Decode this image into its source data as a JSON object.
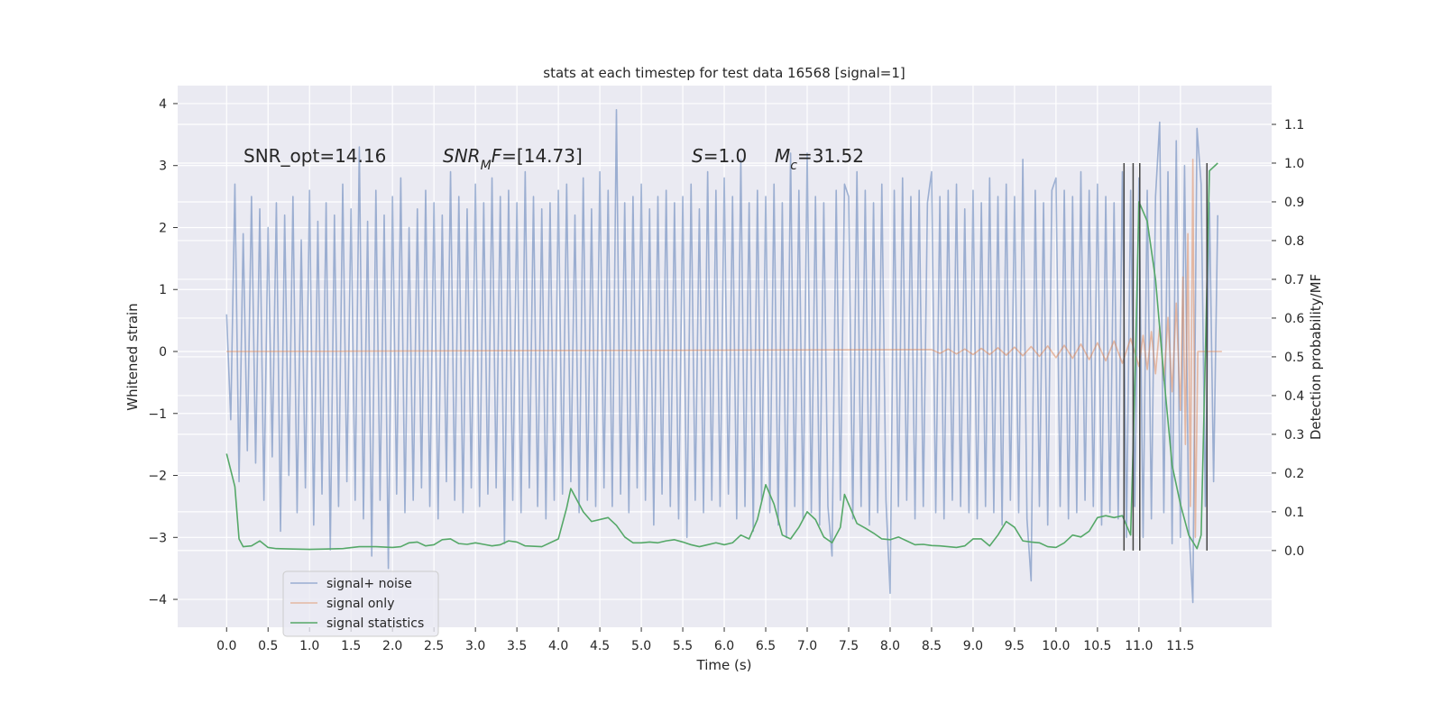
{
  "chart_data": {
    "type": "line",
    "title": "stats at each timestep for test data 16568 [signal=1]",
    "x_label": "Time (s)",
    "y_label": "Whitened strain",
    "y2_label": "Detection probability/MF",
    "xlim": [
      -0.59,
      12.6
    ],
    "ylim": [
      -4.45,
      4.29
    ],
    "y2lim": [
      -0.198,
      1.2
    ],
    "xticks": [
      {
        "value": 0,
        "label": "0.0"
      },
      0.5,
      {
        "value": 1,
        "label": "1.0"
      },
      1.5,
      {
        "value": 2,
        "label": "2.0"
      },
      2.5,
      {
        "value": 3,
        "label": "3.0"
      },
      3.5,
      {
        "value": 4,
        "label": "4.0"
      },
      4.5,
      {
        "value": 5,
        "label": "5.0"
      },
      5.5,
      {
        "value": 6,
        "label": "6.0"
      },
      6.5,
      {
        "value": 7,
        "label": "7.0"
      },
      7.5,
      {
        "value": 8,
        "label": "8.0"
      },
      8.5,
      {
        "value": 9,
        "label": "9.0"
      },
      9.5,
      {
        "value": 10,
        "label": "10.0"
      },
      10.5,
      {
        "value": 11,
        "label": "11.0"
      },
      11.5
    ],
    "yticks": [
      {
        "value": -4,
        "label": "−4"
      },
      {
        "value": -3,
        "label": "−3"
      },
      {
        "value": -2,
        "label": "−2"
      },
      {
        "value": -1,
        "label": "−1"
      },
      0,
      1,
      2,
      3,
      4
    ],
    "y2ticks": [
      {
        "value": 0,
        "label": "0.0"
      },
      0.1,
      0.2,
      0.3,
      0.4,
      0.5,
      0.6,
      0.7,
      0.8,
      0.9,
      {
        "value": 1,
        "label": "1.0"
      },
      1.1
    ],
    "grid": true,
    "legend": "lower left",
    "annotations": [
      {
        "parts": [
          {
            "text": "SNR_opt=14.16"
          }
        ]
      },
      {
        "parts": [
          {
            "text": "SNR",
            "italic": true
          },
          {
            "text": "M",
            "italic": true,
            "sub": true
          },
          {
            "text": "F",
            "italic": true
          },
          {
            "text": "=[14.73]"
          }
        ]
      },
      {
        "parts": [
          {
            "text": "S",
            "italic": true
          },
          {
            "text": "=1.0"
          }
        ]
      },
      {
        "parts": [
          {
            "text": "M",
            "italic": true
          },
          {
            "text": "c",
            "italic": true,
            "sub": true
          },
          {
            "text": "=31.52"
          }
        ]
      }
    ],
    "vlines": {
      "x": [
        10.82,
        10.93,
        11.01,
        11.82
      ],
      "range": [
        0,
        1
      ],
      "color": "#444444"
    },
    "series": [
      {
        "name": "signal+ noise",
        "color": "#4c72b0",
        "alpha": 0.5,
        "axis": "y",
        "x": [
          0,
          0.05,
          0.1,
          0.15,
          0.2,
          0.25,
          0.3,
          0.35,
          0.4,
          0.45,
          0.5,
          0.55,
          0.6,
          0.65,
          0.7,
          0.75,
          0.8,
          0.85,
          0.9,
          0.95,
          1,
          1.05,
          1.1,
          1.15,
          1.2,
          1.25,
          1.3,
          1.35,
          1.4,
          1.45,
          1.5,
          1.55,
          1.6,
          1.65,
          1.7,
          1.75,
          1.8,
          1.85,
          1.9,
          1.95,
          2,
          2.05,
          2.1,
          2.15,
          2.2,
          2.25,
          2.3,
          2.35,
          2.4,
          2.45,
          2.5,
          2.55,
          2.6,
          2.65,
          2.7,
          2.75,
          2.8,
          2.85,
          2.9,
          2.95,
          3,
          3.05,
          3.1,
          3.15,
          3.2,
          3.25,
          3.3,
          3.35,
          3.4,
          3.45,
          3.5,
          3.55,
          3.6,
          3.65,
          3.7,
          3.75,
          3.8,
          3.85,
          3.9,
          3.95,
          4,
          4.05,
          4.1,
          4.15,
          4.2,
          4.25,
          4.3,
          4.35,
          4.4,
          4.45,
          4.5,
          4.55,
          4.6,
          4.65,
          4.7,
          4.75,
          4.8,
          4.85,
          4.9,
          4.95,
          5,
          5.05,
          5.1,
          5.15,
          5.2,
          5.25,
          5.3,
          5.35,
          5.4,
          5.45,
          5.5,
          5.55,
          5.6,
          5.65,
          5.7,
          5.75,
          5.8,
          5.85,
          5.9,
          5.95,
          6,
          6.05,
          6.1,
          6.15,
          6.2,
          6.25,
          6.3,
          6.35,
          6.4,
          6.45,
          6.5,
          6.55,
          6.6,
          6.65,
          6.7,
          6.75,
          6.8,
          6.85,
          6.9,
          6.95,
          7,
          7.05,
          7.1,
          7.15,
          7.2,
          7.25,
          7.3,
          7.35,
          7.4,
          7.45,
          7.5,
          7.55,
          7.6,
          7.65,
          7.7,
          7.75,
          7.8,
          7.85,
          7.9,
          7.95,
          8,
          8.05,
          8.1,
          8.15,
          8.2,
          8.25,
          8.3,
          8.35,
          8.4,
          8.45,
          8.5,
          8.55,
          8.6,
          8.65,
          8.7,
          8.75,
          8.8,
          8.85,
          8.9,
          8.95,
          9,
          9.05,
          9.1,
          9.15,
          9.2,
          9.25,
          9.3,
          9.35,
          9.4,
          9.45,
          9.5,
          9.55,
          9.6,
          9.65,
          9.7,
          9.75,
          9.8,
          9.85,
          9.9,
          9.95,
          10,
          10.05,
          10.1,
          10.15,
          10.2,
          10.25,
          10.3,
          10.35,
          10.4,
          10.45,
          10.5,
          10.55,
          10.6,
          10.65,
          10.7,
          10.75,
          10.8,
          10.85,
          10.9,
          10.95,
          11,
          11.05,
          11.1,
          11.15,
          11.2,
          11.25,
          11.3,
          11.35,
          11.4,
          11.45,
          11.5,
          11.55,
          11.6,
          11.65,
          11.7,
          11.75,
          11.8,
          11.85,
          11.9,
          11.95
        ],
        "values": [
          0.6,
          -1.1,
          2.7,
          -2.1,
          1.9,
          -1.6,
          2.5,
          -1.8,
          2.3,
          -2.4,
          2.0,
          -1.7,
          2.4,
          -2.9,
          2.2,
          -2.0,
          2.5,
          -2.6,
          1.8,
          -2.2,
          2.6,
          -2.8,
          2.1,
          -2.3,
          2.4,
          -3.2,
          2.2,
          -2.5,
          2.7,
          -2.1,
          2.3,
          -2.4,
          3.3,
          -2.7,
          2.1,
          -3.3,
          2.6,
          -2.4,
          2.2,
          -3.5,
          2.5,
          -2.3,
          2.8,
          -2.6,
          2.0,
          -2.4,
          2.3,
          -2.2,
          2.6,
          -2.5,
          2.4,
          -2.7,
          2.2,
          -2.1,
          2.9,
          -2.4,
          2.5,
          -2.6,
          2.3,
          -2.2,
          2.7,
          -2.5,
          2.4,
          -2.3,
          2.8,
          -2.2,
          2.5,
          -3.1,
          2.6,
          -2.4,
          2.4,
          -2.6,
          2.9,
          -2.2,
          2.5,
          -2.5,
          2.3,
          -2.7,
          2.4,
          -2.4,
          2.6,
          -2.3,
          2.7,
          -2.1,
          2.2,
          -2.6,
          2.8,
          -2.4,
          2.3,
          -2.5,
          2.9,
          -2.2,
          2.6,
          -2.5,
          3.9,
          -2.3,
          2.4,
          -2.6,
          2.5,
          -2.2,
          2.7,
          -2.4,
          2.3,
          -2.8,
          2.5,
          -2.3,
          2.6,
          -2.5,
          2.4,
          -2.7,
          2.5,
          -3.0,
          2.7,
          -2.4,
          2.3,
          -2.6,
          2.9,
          -2.4,
          2.6,
          -2.5,
          2.8,
          -2.3,
          2.5,
          -2.7,
          3.1,
          -2.5,
          2.4,
          -2.9,
          2.6,
          -2.4,
          2.5,
          -2.6,
          2.7,
          -2.8,
          2.4,
          -3.0,
          3.2,
          -2.5,
          2.6,
          -2.7,
          3.2,
          -2.6,
          2.5,
          -2.8,
          2.4,
          -2.5,
          -3.3,
          2.6,
          -2.4,
          2.7,
          2.5,
          -2.7,
          2.9,
          -2.5,
          2.6,
          -2.8,
          2.4,
          -2.6,
          2.7,
          -2.4,
          -3.9,
          2.6,
          -2.5,
          2.8,
          -2.4,
          2.5,
          -2.7,
          2.6,
          -2.5,
          2.4,
          2.9,
          -2.6,
          2.5,
          -2.7,
          2.6,
          -2.4,
          2.7,
          -2.5,
          2.3,
          -2.6,
          2.6,
          -2.7,
          2.4,
          -2.5,
          2.8,
          -2.6,
          2.5,
          -2.8,
          2.7,
          -2.4,
          2.5,
          -2.6,
          3.1,
          -2.7,
          -3.7,
          2.6,
          -2.5,
          2.4,
          -2.8,
          2.6,
          2.8,
          -2.5,
          2.6,
          -2.7,
          2.5,
          -2.6,
          2.9,
          -2.4,
          2.6,
          -2.5,
          2.7,
          -2.8,
          2.5,
          -2.6,
          2.4,
          -2.7,
          2.9,
          -3.0,
          2.6,
          -2.5,
          2.8,
          -3.0,
          2.6,
          -2.7,
          2.5,
          3.7,
          -2.6,
          2.9,
          -3.1,
          3.4,
          -3.0,
          3.0,
          -2.8,
          -4.05,
          3.6,
          2.7,
          -2.5,
          2.4,
          -2.1,
          2.2
        ]
      },
      {
        "name": "signal only",
        "color": "#dd8452",
        "alpha": 0.5,
        "axis": "y",
        "x": [
          0,
          8.5,
          8.6,
          8.7,
          8.8,
          8.9,
          9,
          9.1,
          9.2,
          9.3,
          9.4,
          9.5,
          9.6,
          9.7,
          9.8,
          9.9,
          10,
          10.1,
          10.2,
          10.3,
          10.4,
          10.5,
          10.6,
          10.7,
          10.8,
          10.9,
          11,
          11.05,
          11.1,
          11.15,
          11.2,
          11.25,
          11.3,
          11.35,
          11.4,
          11.45,
          11.5,
          11.53,
          11.56,
          11.59,
          11.62,
          11.65,
          11.68,
          11.71,
          12
        ],
        "values": [
          0,
          0.03,
          -0.03,
          0.04,
          -0.04,
          0.04,
          -0.05,
          0.05,
          -0.05,
          0.06,
          -0.06,
          0.07,
          -0.07,
          0.08,
          -0.08,
          0.09,
          -0.1,
          0.1,
          -0.11,
          0.12,
          -0.13,
          0.14,
          -0.15,
          0.17,
          -0.19,
          0.21,
          -0.24,
          0.26,
          -0.29,
          0.32,
          -0.36,
          0.41,
          -0.47,
          0.55,
          -0.65,
          0.78,
          -0.95,
          1.2,
          -1.5,
          1.9,
          -2.5,
          3.1,
          -3.0,
          0,
          0
        ]
      },
      {
        "name": "signal statistics",
        "color": "#55a868",
        "alpha": 1,
        "axis": "y2",
        "x": [
          0,
          0.1,
          0.15,
          0.2,
          0.3,
          0.4,
          0.5,
          0.6,
          0.8,
          1,
          1.2,
          1.4,
          1.6,
          1.8,
          2,
          2.1,
          2.2,
          2.3,
          2.4,
          2.5,
          2.6,
          2.7,
          2.8,
          2.9,
          3,
          3.1,
          3.2,
          3.3,
          3.4,
          3.5,
          3.6,
          3.8,
          4,
          4.1,
          4.15,
          4.3,
          4.4,
          4.6,
          4.7,
          4.8,
          4.9,
          5,
          5.1,
          5.2,
          5.3,
          5.4,
          5.5,
          5.6,
          5.7,
          5.8,
          5.9,
          6,
          6.1,
          6.2,
          6.3,
          6.4,
          6.5,
          6.6,
          6.7,
          6.8,
          6.9,
          7,
          7.1,
          7.2,
          7.3,
          7.4,
          7.45,
          7.5,
          7.6,
          7.7,
          7.8,
          7.9,
          8,
          8.1,
          8.2,
          8.3,
          8.4,
          8.5,
          8.6,
          8.7,
          8.8,
          8.9,
          9,
          9.1,
          9.2,
          9.3,
          9.4,
          9.5,
          9.6,
          9.7,
          9.8,
          9.9,
          10,
          10.1,
          10.2,
          10.3,
          10.4,
          10.5,
          10.6,
          10.7,
          10.8,
          10.9,
          10.95,
          11,
          11.1,
          11.2,
          11.3,
          11.4,
          11.5,
          11.6,
          11.7,
          11.75,
          11.8,
          11.85,
          11.95
        ],
        "values": [
          0.25,
          0.165,
          0.03,
          0.01,
          0.012,
          0.025,
          0.008,
          0.005,
          0.004,
          0.003,
          0.004,
          0.005,
          0.01,
          0.01,
          0.008,
          0.01,
          0.02,
          0.022,
          0.012,
          0.015,
          0.028,
          0.03,
          0.018,
          0.016,
          0.02,
          0.016,
          0.012,
          0.015,
          0.025,
          0.022,
          0.012,
          0.01,
          0.03,
          0.11,
          0.16,
          0.1,
          0.075,
          0.085,
          0.065,
          0.035,
          0.02,
          0.02,
          0.022,
          0.02,
          0.025,
          0.028,
          0.022,
          0.015,
          0.01,
          0.015,
          0.02,
          0.015,
          0.02,
          0.04,
          0.03,
          0.08,
          0.17,
          0.12,
          0.04,
          0.03,
          0.06,
          0.1,
          0.08,
          0.035,
          0.02,
          0.06,
          0.145,
          0.12,
          0.07,
          0.058,
          0.045,
          0.03,
          0.028,
          0.035,
          0.025,
          0.015,
          0.016,
          0.013,
          0.012,
          0.01,
          0.008,
          0.012,
          0.03,
          0.03,
          0.012,
          0.04,
          0.075,
          0.06,
          0.025,
          0.022,
          0.02,
          0.01,
          0.008,
          0.02,
          0.04,
          0.035,
          0.05,
          0.085,
          0.09,
          0.085,
          0.09,
          0.04,
          0.42,
          0.9,
          0.85,
          0.7,
          0.45,
          0.22,
          0.12,
          0.04,
          0.005,
          0.04,
          0.5,
          0.98,
          1.0
        ]
      }
    ]
  }
}
